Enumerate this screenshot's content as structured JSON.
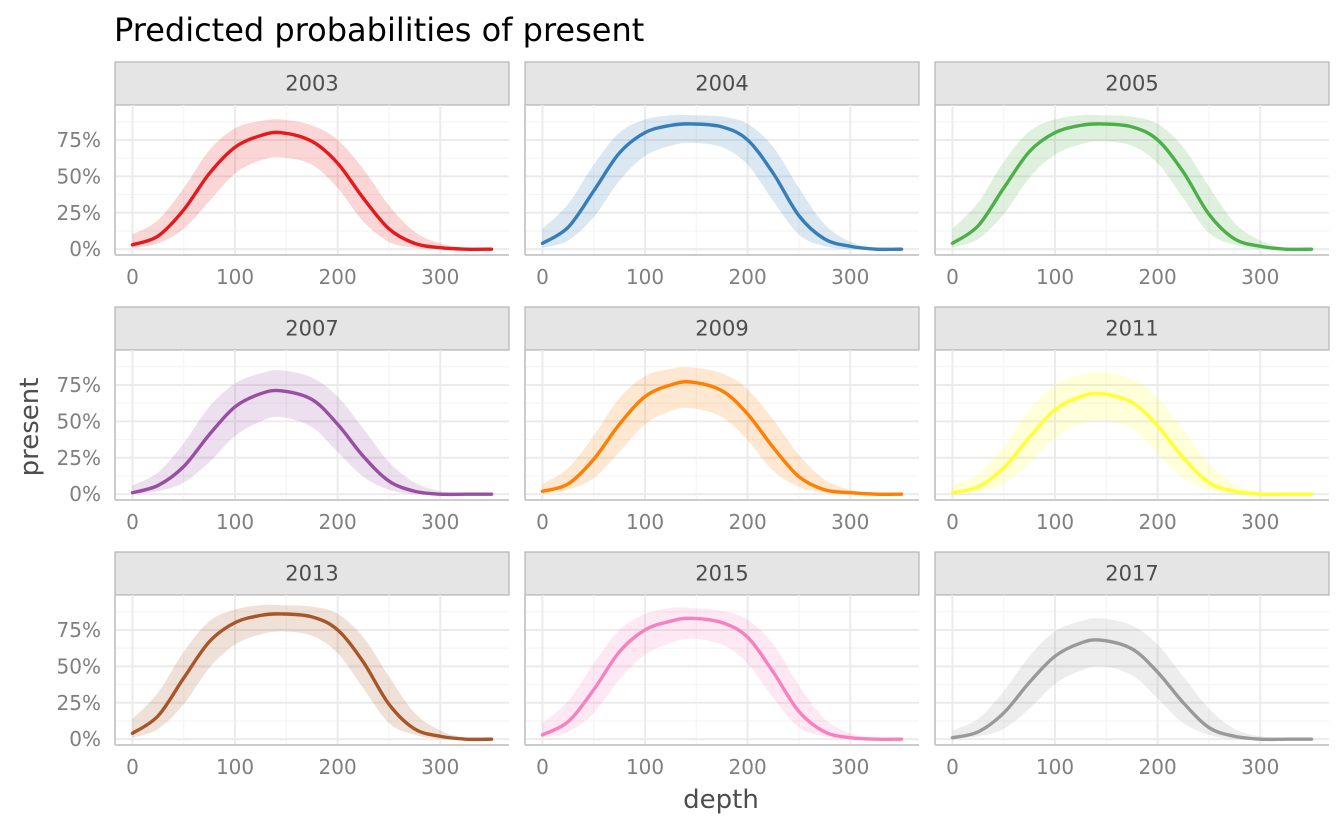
{
  "chart_data": {
    "type": "line",
    "title": "Predicted probabilities of present",
    "xlabel": "depth",
    "ylabel": "present",
    "xlim": [
      -17,
      367
    ],
    "ylim": [
      -0.04,
      0.99
    ],
    "x_ticks": [
      0,
      100,
      200,
      300
    ],
    "x_tick_labels": [
      "0",
      "100",
      "200",
      "300"
    ],
    "y_ticks": [
      0,
      0.25,
      0.5,
      0.75
    ],
    "y_tick_labels": [
      "0%",
      "25%",
      "50%",
      "75%"
    ],
    "grid": true,
    "legend": "none",
    "x": [
      0,
      25,
      50,
      75,
      100,
      125,
      145,
      175,
      200,
      225,
      250,
      275,
      300,
      325,
      350
    ],
    "panels": [
      {
        "label": "2003",
        "color": "#E41A1C",
        "values": [
          0.03,
          0.09,
          0.27,
          0.52,
          0.7,
          0.78,
          0.8,
          0.74,
          0.59,
          0.35,
          0.14,
          0.04,
          0.01,
          0.0,
          0.0
        ],
        "lower": [
          0.01,
          0.04,
          0.14,
          0.33,
          0.52,
          0.61,
          0.63,
          0.58,
          0.42,
          0.19,
          0.05,
          0.01,
          0.0,
          0.0,
          0.0
        ],
        "upper": [
          0.1,
          0.2,
          0.42,
          0.68,
          0.83,
          0.88,
          0.89,
          0.85,
          0.75,
          0.55,
          0.3,
          0.12,
          0.04,
          0.01,
          0.0
        ]
      },
      {
        "label": "2004",
        "color": "#377EB8",
        "values": [
          0.04,
          0.15,
          0.4,
          0.66,
          0.8,
          0.85,
          0.86,
          0.84,
          0.75,
          0.52,
          0.23,
          0.07,
          0.02,
          0.0,
          0.0
        ],
        "lower": [
          0.01,
          0.06,
          0.22,
          0.47,
          0.64,
          0.71,
          0.73,
          0.7,
          0.58,
          0.33,
          0.1,
          0.02,
          0.0,
          0.0,
          0.0
        ],
        "upper": [
          0.14,
          0.31,
          0.58,
          0.8,
          0.89,
          0.92,
          0.92,
          0.91,
          0.86,
          0.7,
          0.42,
          0.17,
          0.05,
          0.01,
          0.0
        ]
      },
      {
        "label": "2005",
        "color": "#4DAF4A",
        "values": [
          0.04,
          0.16,
          0.42,
          0.67,
          0.8,
          0.85,
          0.86,
          0.84,
          0.75,
          0.53,
          0.24,
          0.07,
          0.02,
          0.0,
          0.0
        ],
        "lower": [
          0.01,
          0.07,
          0.24,
          0.49,
          0.65,
          0.72,
          0.74,
          0.71,
          0.59,
          0.35,
          0.11,
          0.03,
          0.0,
          0.0,
          0.0
        ],
        "upper": [
          0.14,
          0.32,
          0.6,
          0.81,
          0.89,
          0.92,
          0.92,
          0.91,
          0.86,
          0.7,
          0.43,
          0.18,
          0.06,
          0.01,
          0.0
        ]
      },
      {
        "label": "2007",
        "color": "#984EA3",
        "values": [
          0.01,
          0.06,
          0.19,
          0.41,
          0.6,
          0.69,
          0.71,
          0.65,
          0.48,
          0.26,
          0.09,
          0.02,
          0.0,
          0.0,
          0.0
        ],
        "lower": [
          0.0,
          0.02,
          0.08,
          0.22,
          0.4,
          0.5,
          0.53,
          0.46,
          0.29,
          0.12,
          0.03,
          0.0,
          0.0,
          0.0,
          0.0
        ],
        "upper": [
          0.06,
          0.15,
          0.35,
          0.6,
          0.76,
          0.83,
          0.85,
          0.8,
          0.67,
          0.45,
          0.22,
          0.08,
          0.02,
          0.0,
          0.0
        ]
      },
      {
        "label": "2009",
        "color": "#FF7F00",
        "values": [
          0.02,
          0.07,
          0.24,
          0.48,
          0.67,
          0.75,
          0.77,
          0.71,
          0.55,
          0.32,
          0.12,
          0.03,
          0.01,
          0.0,
          0.0
        ],
        "lower": [
          0.0,
          0.03,
          0.11,
          0.29,
          0.48,
          0.57,
          0.59,
          0.53,
          0.37,
          0.16,
          0.05,
          0.01,
          0.0,
          0.0,
          0.0
        ],
        "upper": [
          0.07,
          0.18,
          0.4,
          0.66,
          0.81,
          0.86,
          0.87,
          0.83,
          0.72,
          0.51,
          0.27,
          0.1,
          0.03,
          0.0,
          0.0
        ]
      },
      {
        "label": "2011",
        "color": "#FFFF33",
        "values": [
          0.01,
          0.05,
          0.18,
          0.39,
          0.58,
          0.67,
          0.69,
          0.63,
          0.47,
          0.25,
          0.08,
          0.02,
          0.0,
          0.0,
          0.0
        ],
        "lower": [
          0.0,
          0.02,
          0.07,
          0.21,
          0.39,
          0.48,
          0.51,
          0.45,
          0.28,
          0.11,
          0.03,
          0.0,
          0.0,
          0.0,
          0.0
        ],
        "upper": [
          0.06,
          0.14,
          0.33,
          0.58,
          0.75,
          0.82,
          0.84,
          0.79,
          0.66,
          0.44,
          0.21,
          0.07,
          0.02,
          0.0,
          0.0
        ]
      },
      {
        "label": "2013",
        "color": "#A65628",
        "values": [
          0.04,
          0.16,
          0.42,
          0.67,
          0.8,
          0.85,
          0.86,
          0.84,
          0.75,
          0.53,
          0.24,
          0.07,
          0.02,
          0.0,
          0.0
        ],
        "lower": [
          0.01,
          0.07,
          0.24,
          0.49,
          0.65,
          0.72,
          0.74,
          0.71,
          0.59,
          0.35,
          0.11,
          0.03,
          0.0,
          0.0,
          0.0
        ],
        "upper": [
          0.14,
          0.32,
          0.6,
          0.81,
          0.89,
          0.92,
          0.92,
          0.91,
          0.86,
          0.7,
          0.43,
          0.18,
          0.06,
          0.01,
          0.0
        ]
      },
      {
        "label": "2015",
        "color": "#F781BF",
        "values": [
          0.03,
          0.12,
          0.34,
          0.6,
          0.75,
          0.81,
          0.83,
          0.8,
          0.7,
          0.46,
          0.19,
          0.05,
          0.01,
          0.0,
          0.0
        ],
        "lower": [
          0.01,
          0.05,
          0.18,
          0.41,
          0.58,
          0.66,
          0.69,
          0.65,
          0.52,
          0.28,
          0.08,
          0.02,
          0.0,
          0.0,
          0.0
        ],
        "upper": [
          0.11,
          0.26,
          0.52,
          0.75,
          0.86,
          0.9,
          0.9,
          0.88,
          0.82,
          0.65,
          0.37,
          0.14,
          0.04,
          0.01,
          0.0
        ]
      },
      {
        "label": "2017",
        "color": "#999999",
        "values": [
          0.01,
          0.05,
          0.18,
          0.39,
          0.57,
          0.66,
          0.68,
          0.62,
          0.46,
          0.25,
          0.08,
          0.02,
          0.0,
          0.0,
          0.0
        ],
        "lower": [
          0.0,
          0.02,
          0.07,
          0.21,
          0.38,
          0.47,
          0.5,
          0.44,
          0.28,
          0.11,
          0.03,
          0.0,
          0.0,
          0.0,
          0.0
        ],
        "upper": [
          0.06,
          0.14,
          0.33,
          0.57,
          0.74,
          0.81,
          0.83,
          0.78,
          0.65,
          0.43,
          0.21,
          0.07,
          0.02,
          0.0,
          0.0
        ]
      }
    ]
  }
}
